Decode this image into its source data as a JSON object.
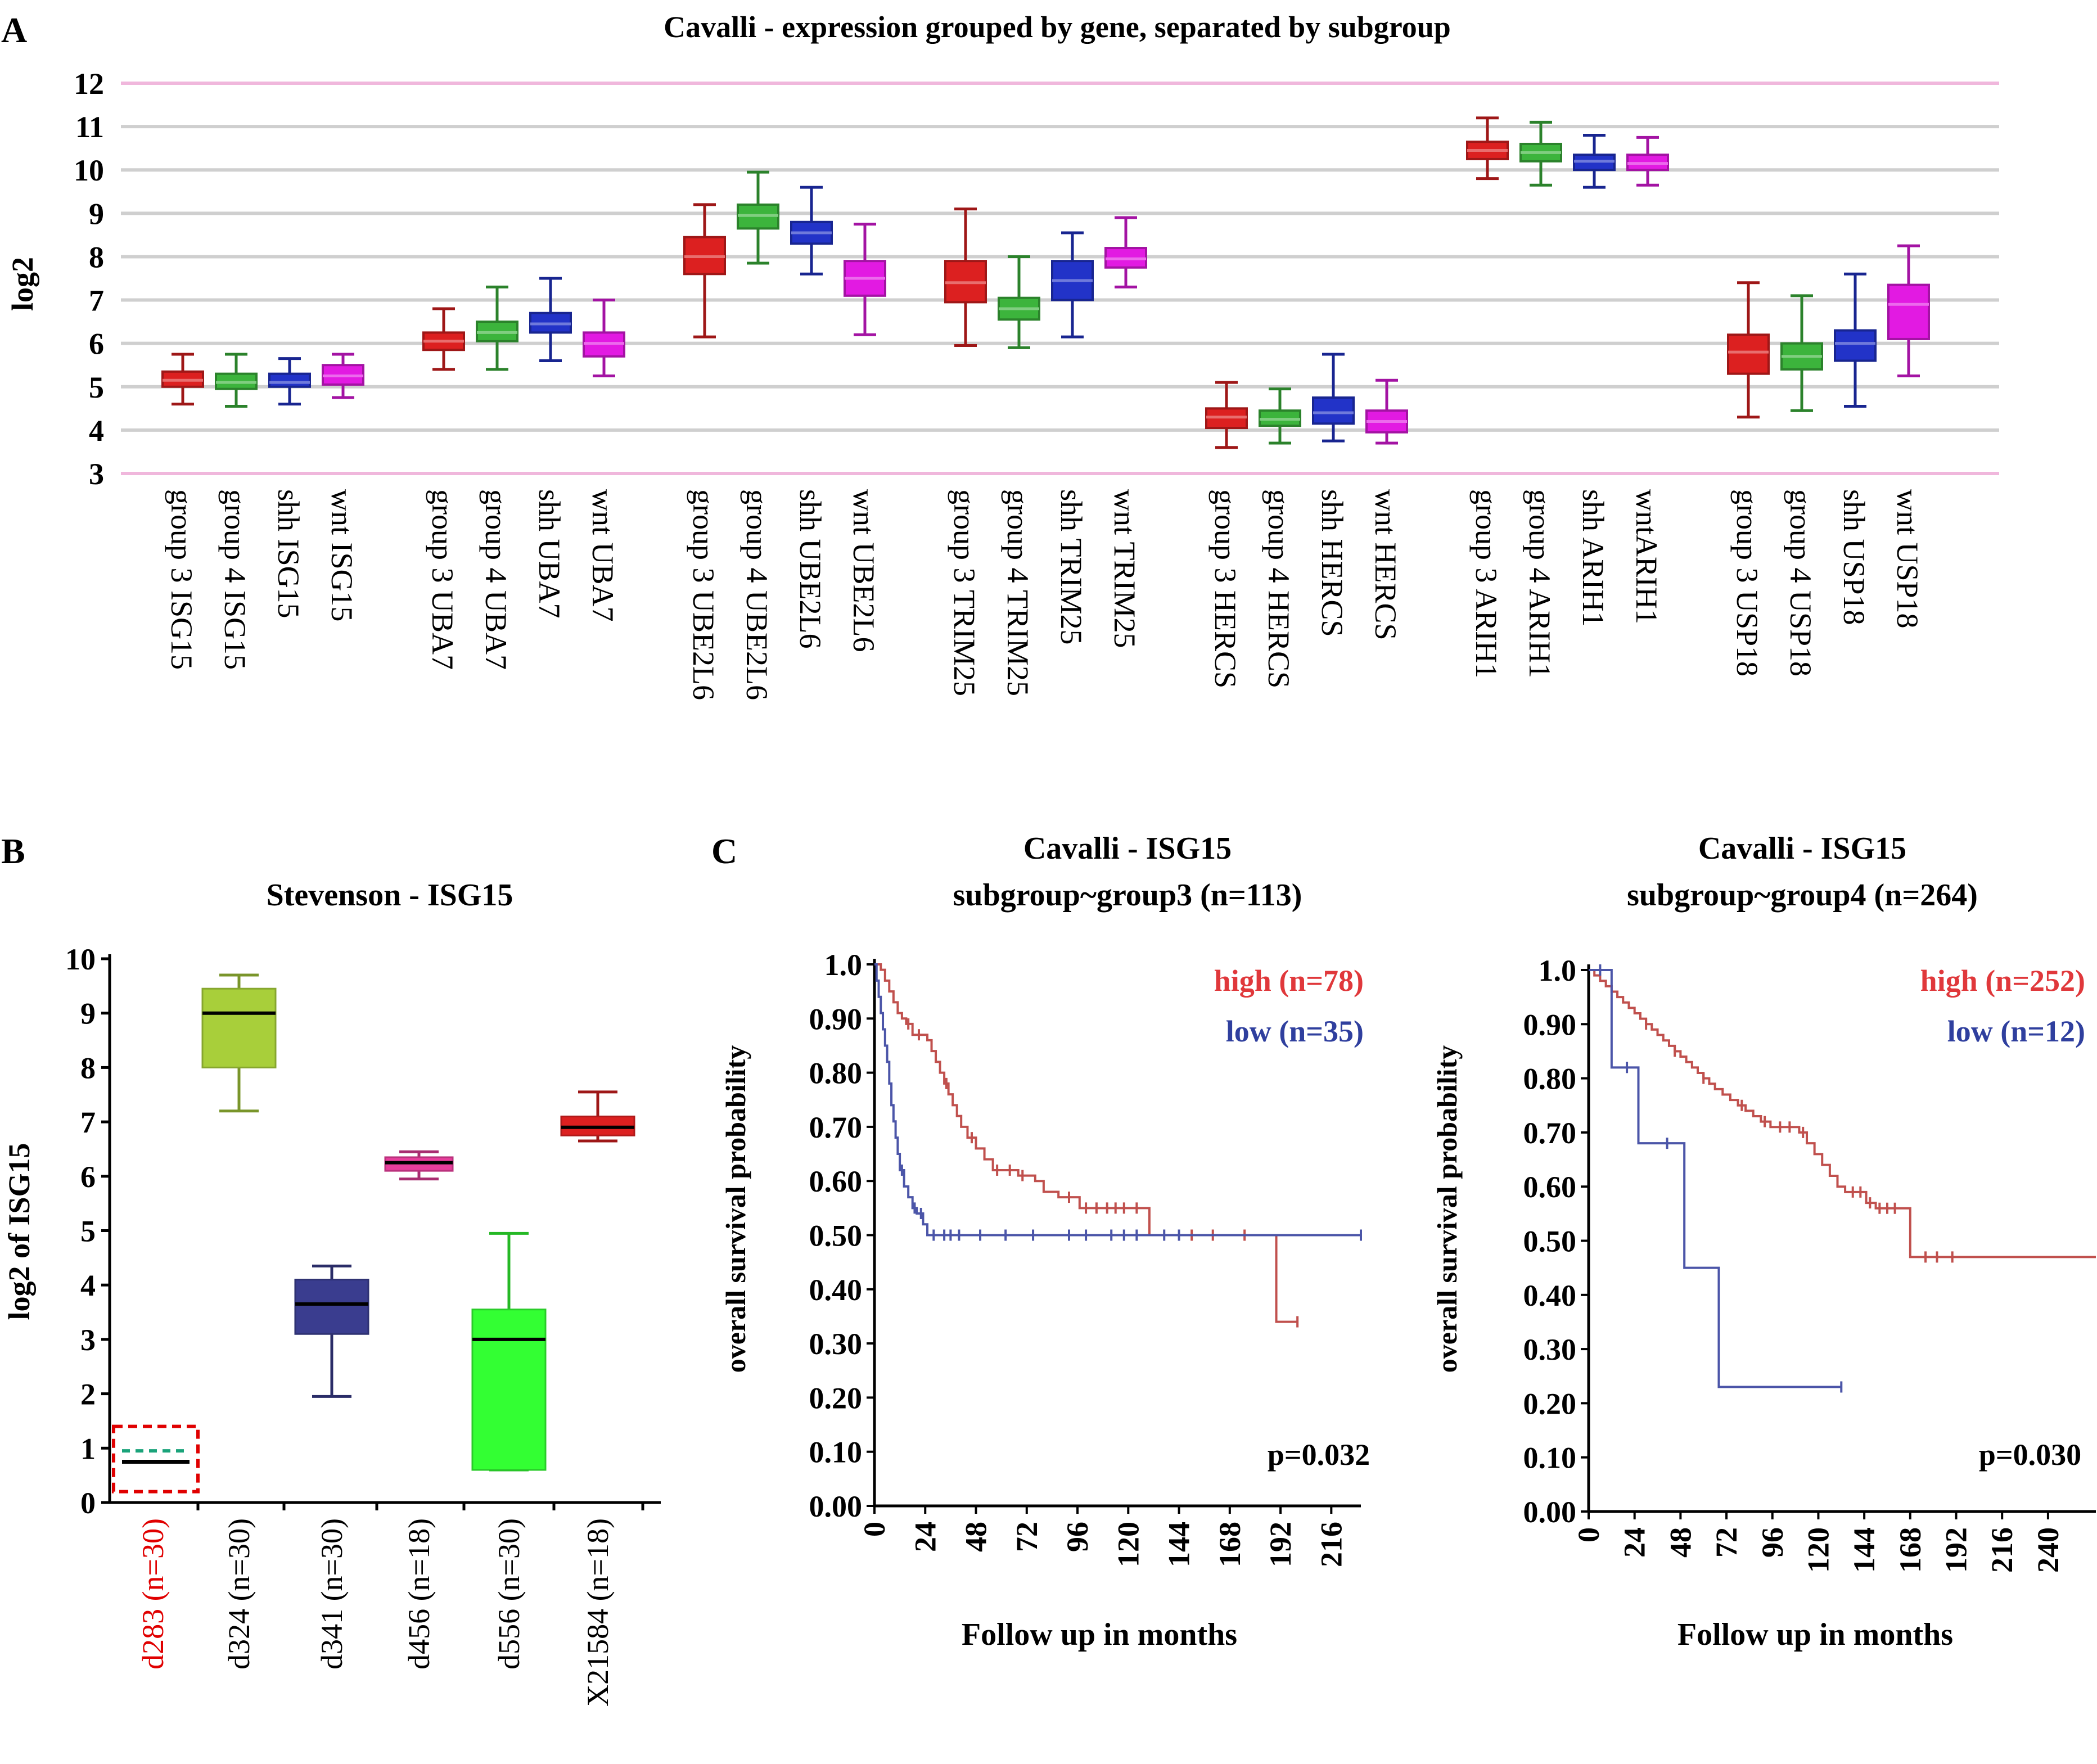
{
  "panel_labels": {
    "a": "A",
    "b": "B",
    "c": "C"
  },
  "colors": {
    "red": "#dc2020",
    "green": "#3cb43c",
    "blue": "#2233c8",
    "magenta": "#e21ae2",
    "lime": "#a8cf3a",
    "navy": "#3a3d8f",
    "pink": "#e83e9c",
    "bright_green": "#33ff33",
    "km_high": "#c0504d",
    "km_low": "#4b55a8",
    "grid": "#cfcfcf",
    "pink_line": "#f0b7dc",
    "highlight": "#e00000",
    "dash_green": "#1aa37a"
  },
  "chart_data": [
    {
      "id": "A",
      "type": "boxplot",
      "title": "Cavalli - expression grouped by gene, separated by subgroup",
      "ylabel": "log2",
      "ylim": [
        3,
        12
      ],
      "yticks": [
        3,
        4,
        5,
        6,
        7,
        8,
        9,
        10,
        11,
        12
      ],
      "grid": true,
      "groups": [
        {
          "gene": "ISG15",
          "boxes": [
            {
              "label": "group 3 ISG15",
              "color": "red",
              "whisker_low": 4.6,
              "q1": 5.0,
              "median": 5.15,
              "q3": 5.35,
              "whisker_high": 5.75
            },
            {
              "label": "group 4 ISG15",
              "color": "green",
              "whisker_low": 4.55,
              "q1": 4.95,
              "median": 5.1,
              "q3": 5.3,
              "whisker_high": 5.75
            },
            {
              "label": "shh ISG15",
              "color": "blue",
              "whisker_low": 4.6,
              "q1": 5.0,
              "median": 5.1,
              "q3": 5.3,
              "whisker_high": 5.65
            },
            {
              "label": "wnt ISG15",
              "color": "magenta",
              "whisker_low": 4.75,
              "q1": 5.05,
              "median": 5.25,
              "q3": 5.5,
              "whisker_high": 5.75
            }
          ]
        },
        {
          "gene": "UBA7",
          "boxes": [
            {
              "label": "group 3 UBA7",
              "color": "red",
              "whisker_low": 5.4,
              "q1": 5.85,
              "median": 6.05,
              "q3": 6.25,
              "whisker_high": 6.8
            },
            {
              "label": "group 4 UBA7",
              "color": "green",
              "whisker_low": 5.4,
              "q1": 6.05,
              "median": 6.25,
              "q3": 6.5,
              "whisker_high": 7.3
            },
            {
              "label": "shh UBA7",
              "color": "blue",
              "whisker_low": 5.6,
              "q1": 6.25,
              "median": 6.45,
              "q3": 6.7,
              "whisker_high": 7.5
            },
            {
              "label": "wnt UBA7",
              "color": "magenta",
              "whisker_low": 5.25,
              "q1": 5.7,
              "median": 6.0,
              "q3": 6.25,
              "whisker_high": 7.0
            }
          ]
        },
        {
          "gene": "UBE2L6",
          "boxes": [
            {
              "label": "group 3 UBE2L6",
              "color": "red",
              "whisker_low": 6.15,
              "q1": 7.6,
              "median": 8.0,
              "q3": 8.45,
              "whisker_high": 9.2
            },
            {
              "label": "group 4 UBE2L6",
              "color": "green",
              "whisker_low": 7.85,
              "q1": 8.65,
              "median": 8.95,
              "q3": 9.2,
              "whisker_high": 9.95
            },
            {
              "label": "shh UBE2L6",
              "color": "blue",
              "whisker_low": 7.6,
              "q1": 8.3,
              "median": 8.55,
              "q3": 8.8,
              "whisker_high": 9.6
            },
            {
              "label": "wnt UBE2L6",
              "color": "magenta",
              "whisker_low": 6.2,
              "q1": 7.1,
              "median": 7.5,
              "q3": 7.9,
              "whisker_high": 8.75
            }
          ]
        },
        {
          "gene": "TRIM25",
          "boxes": [
            {
              "label": "group 3 TRIM25",
              "color": "red",
              "whisker_low": 5.95,
              "q1": 6.95,
              "median": 7.4,
              "q3": 7.9,
              "whisker_high": 9.1
            },
            {
              "label": "group 4 TRIM25",
              "color": "green",
              "whisker_low": 5.9,
              "q1": 6.55,
              "median": 6.8,
              "q3": 7.05,
              "whisker_high": 8.0
            },
            {
              "label": "shh TRIM25",
              "color": "blue",
              "whisker_low": 6.15,
              "q1": 7.0,
              "median": 7.45,
              "q3": 7.9,
              "whisker_high": 8.55
            },
            {
              "label": "wnt TRIM25",
              "color": "magenta",
              "whisker_low": 7.3,
              "q1": 7.75,
              "median": 7.95,
              "q3": 8.2,
              "whisker_high": 8.9
            }
          ]
        },
        {
          "gene": "HERCS",
          "boxes": [
            {
              "label": "group 3 HERCS",
              "color": "red",
              "whisker_low": 3.6,
              "q1": 4.05,
              "median": 4.3,
              "q3": 4.5,
              "whisker_high": 5.1
            },
            {
              "label": "group 4 HERCS",
              "color": "green",
              "whisker_low": 3.7,
              "q1": 4.1,
              "median": 4.25,
              "q3": 4.45,
              "whisker_high": 4.95
            },
            {
              "label": "shh HERCS",
              "color": "blue",
              "whisker_low": 3.75,
              "q1": 4.15,
              "median": 4.4,
              "q3": 4.75,
              "whisker_high": 5.75
            },
            {
              "label": "wnt HERCS",
              "color": "magenta",
              "whisker_low": 3.7,
              "q1": 3.95,
              "median": 4.2,
              "q3": 4.45,
              "whisker_high": 5.15
            }
          ]
        },
        {
          "gene": "ARIH1",
          "boxes": [
            {
              "label": "group 3 ARIH1",
              "color": "red",
              "whisker_low": 9.8,
              "q1": 10.25,
              "median": 10.45,
              "q3": 10.65,
              "whisker_high": 11.2
            },
            {
              "label": "group 4 ARIH1",
              "color": "green",
              "whisker_low": 9.65,
              "q1": 10.2,
              "median": 10.4,
              "q3": 10.6,
              "whisker_high": 11.1
            },
            {
              "label": "shh ARIH1",
              "color": "blue",
              "whisker_low": 9.6,
              "q1": 10.0,
              "median": 10.2,
              "q3": 10.35,
              "whisker_high": 10.8
            },
            {
              "label": "wntARIH1",
              "color": "magenta",
              "whisker_low": 9.65,
              "q1": 10.0,
              "median": 10.15,
              "q3": 10.35,
              "whisker_high": 10.75
            }
          ]
        },
        {
          "gene": "USP18",
          "boxes": [
            {
              "label": "group 3 USP18",
              "color": "red",
              "whisker_low": 4.3,
              "q1": 5.3,
              "median": 5.8,
              "q3": 6.2,
              "whisker_high": 7.4
            },
            {
              "label": "group 4 USP18",
              "color": "green",
              "whisker_low": 4.45,
              "q1": 5.4,
              "median": 5.7,
              "q3": 6.0,
              "whisker_high": 7.1
            },
            {
              "label": "shh USP18",
              "color": "blue",
              "whisker_low": 4.55,
              "q1": 5.6,
              "median": 6.0,
              "q3": 6.3,
              "whisker_high": 7.6
            },
            {
              "label": "wnt USP18",
              "color": "magenta",
              "whisker_low": 5.25,
              "q1": 6.1,
              "median": 6.9,
              "q3": 7.35,
              "whisker_high": 8.25
            }
          ]
        }
      ]
    },
    {
      "id": "B",
      "type": "boxplot",
      "title": "Stevenson - ISG15",
      "ylabel": "log2 of ISG15",
      "ylim": [
        0,
        10
      ],
      "yticks": [
        0,
        1,
        2,
        3,
        4,
        5,
        6,
        7,
        8,
        9,
        10
      ],
      "grid": false,
      "boxes": [
        {
          "label": "d283 (n=30)",
          "color": "none",
          "highlighted": true,
          "whisker_low": 0.75,
          "q1": 0.75,
          "median": 0.75,
          "q3": 0.95,
          "whisker_high": 0.95
        },
        {
          "label": "d324 (n=30)",
          "color": "lime",
          "whisker_low": 7.2,
          "q1": 8.0,
          "median": 9.0,
          "q3": 9.45,
          "whisker_high": 9.7
        },
        {
          "label": "d341 (n=30)",
          "color": "navy",
          "whisker_low": 1.95,
          "q1": 3.1,
          "median": 3.65,
          "q3": 4.1,
          "whisker_high": 4.35
        },
        {
          "label": "d456 (n=18)",
          "color": "pink",
          "whisker_low": 5.95,
          "q1": 6.1,
          "median": 6.25,
          "q3": 6.35,
          "whisker_high": 6.45
        },
        {
          "label": "d556 (n=30)",
          "color": "bright_green",
          "whisker_low": 0.6,
          "q1": 0.6,
          "median": 3.0,
          "q3": 3.55,
          "whisker_high": 4.95
        },
        {
          "label": "X21584 (n=18)",
          "color": "red",
          "whisker_low": 6.65,
          "q1": 6.75,
          "median": 6.9,
          "q3": 7.1,
          "whisker_high": 7.55
        }
      ]
    },
    {
      "id": "C1",
      "type": "line",
      "subtype": "kaplan-meier",
      "title_line1": "Cavalli - ISG15",
      "title_line2": "subgroup~group3 (n=113)",
      "xlabel": "Follow up in months",
      "ylabel": "overall survival probability",
      "xlim": [
        0,
        230
      ],
      "xticks": [
        0,
        24,
        48,
        72,
        96,
        120,
        144,
        168,
        192,
        216
      ],
      "ylim": [
        0,
        1
      ],
      "yticks": [
        "0.00",
        "0.10",
        "0.20",
        "0.30",
        "0.40",
        "0.50",
        "0.60",
        "0.70",
        "0.80",
        "0.90",
        "1.0"
      ],
      "pvalue": "p=0.032",
      "series": [
        {
          "name": "high (n=78)",
          "color": "km_high",
          "steps": [
            [
              0,
              1.0
            ],
            [
              3,
              0.99
            ],
            [
              5,
              0.97
            ],
            [
              7,
              0.95
            ],
            [
              9,
              0.93
            ],
            [
              11,
              0.91
            ],
            [
              13,
              0.9
            ],
            [
              15,
              0.89
            ],
            [
              18,
              0.87
            ],
            [
              25,
              0.86
            ],
            [
              27,
              0.84
            ],
            [
              29,
              0.82
            ],
            [
              31,
              0.8
            ],
            [
              33,
              0.78
            ],
            [
              35,
              0.76
            ],
            [
              37,
              0.74
            ],
            [
              39,
              0.72
            ],
            [
              41,
              0.7
            ],
            [
              44,
              0.68
            ],
            [
              48,
              0.66
            ],
            [
              52,
              0.64
            ],
            [
              56,
              0.62
            ],
            [
              68,
              0.61
            ],
            [
              76,
              0.6
            ],
            [
              80,
              0.58
            ],
            [
              87,
              0.57
            ],
            [
              97,
              0.55
            ],
            [
              130,
              0.5
            ],
            [
              190,
              0.34
            ],
            [
              200,
              0.34
            ]
          ],
          "censor": [
            16,
            21,
            34,
            46,
            58,
            64,
            70,
            92,
            100,
            105,
            110,
            114,
            118,
            124,
            150,
            160,
            175,
            200
          ]
        },
        {
          "name": "low (n=35)",
          "color": "km_low",
          "steps": [
            [
              0,
              1.0
            ],
            [
              1,
              0.97
            ],
            [
              2,
              0.94
            ],
            [
              3,
              0.91
            ],
            [
              4,
              0.88
            ],
            [
              5,
              0.85
            ],
            [
              6,
              0.82
            ],
            [
              7,
              0.78
            ],
            [
              8,
              0.74
            ],
            [
              9,
              0.71
            ],
            [
              10,
              0.68
            ],
            [
              11,
              0.65
            ],
            [
              12,
              0.62
            ],
            [
              14,
              0.59
            ],
            [
              16,
              0.57
            ],
            [
              18,
              0.55
            ],
            [
              20,
              0.54
            ],
            [
              23,
              0.52
            ],
            [
              25,
              0.5
            ],
            [
              230,
              0.5
            ]
          ],
          "censor": [
            13,
            19,
            22,
            28,
            33,
            36,
            40,
            50,
            62,
            75,
            92,
            100,
            112,
            118,
            124,
            137,
            144,
            230
          ]
        }
      ]
    },
    {
      "id": "C2",
      "type": "line",
      "subtype": "kaplan-meier",
      "title_line1": "Cavalli - ISG15",
      "title_line2": "subgroup~group4 (n=264)",
      "xlabel": "Follow up in months",
      "ylabel": "overall survival probability",
      "xlim": [
        0,
        265
      ],
      "xticks": [
        0,
        24,
        48,
        72,
        96,
        120,
        144,
        168,
        192,
        216,
        240
      ],
      "ylim": [
        0,
        1
      ],
      "yticks": [
        "0.00",
        "0.10",
        "0.20",
        "0.30",
        "0.40",
        "0.50",
        "0.60",
        "0.70",
        "0.80",
        "0.90",
        "1.0"
      ],
      "pvalue": "p=0.030",
      "series": [
        {
          "name": "high (n=252)",
          "color": "km_high",
          "steps": [
            [
              0,
              1.0
            ],
            [
              3,
              0.99
            ],
            [
              6,
              0.98
            ],
            [
              9,
              0.97
            ],
            [
              12,
              0.96
            ],
            [
              15,
              0.95
            ],
            [
              18,
              0.94
            ],
            [
              21,
              0.93
            ],
            [
              24,
              0.92
            ],
            [
              27,
              0.91
            ],
            [
              30,
              0.9
            ],
            [
              33,
              0.89
            ],
            [
              36,
              0.88
            ],
            [
              39,
              0.87
            ],
            [
              42,
              0.86
            ],
            [
              45,
              0.85
            ],
            [
              48,
              0.84
            ],
            [
              51,
              0.83
            ],
            [
              54,
              0.82
            ],
            [
              57,
              0.81
            ],
            [
              60,
              0.8
            ],
            [
              63,
              0.79
            ],
            [
              66,
              0.78
            ],
            [
              70,
              0.77
            ],
            [
              74,
              0.76
            ],
            [
              78,
              0.75
            ],
            [
              82,
              0.74
            ],
            [
              86,
              0.73
            ],
            [
              90,
              0.72
            ],
            [
              95,
              0.71
            ],
            [
              110,
              0.7
            ],
            [
              114,
              0.68
            ],
            [
              118,
              0.66
            ],
            [
              122,
              0.64
            ],
            [
              126,
              0.62
            ],
            [
              130,
              0.6
            ],
            [
              134,
              0.59
            ],
            [
              145,
              0.57
            ],
            [
              150,
              0.56
            ],
            [
              168,
              0.47
            ],
            [
              265,
              0.47
            ]
          ],
          "censor": [
            30,
            45,
            60,
            80,
            92,
            100,
            105,
            112,
            138,
            142,
            147,
            152,
            156,
            160,
            176,
            182,
            190
          ]
        },
        {
          "name": "low (n=12)",
          "color": "km_low",
          "steps": [
            [
              0,
              1.0
            ],
            [
              12,
              0.82
            ],
            [
              24,
              0.82
            ],
            [
              26,
              0.68
            ],
            [
              48,
              0.68
            ],
            [
              50,
              0.45
            ],
            [
              66,
              0.45
            ],
            [
              68,
              0.23
            ],
            [
              132,
              0.23
            ]
          ],
          "censor": [
            6,
            20,
            41,
            132
          ]
        }
      ]
    }
  ]
}
